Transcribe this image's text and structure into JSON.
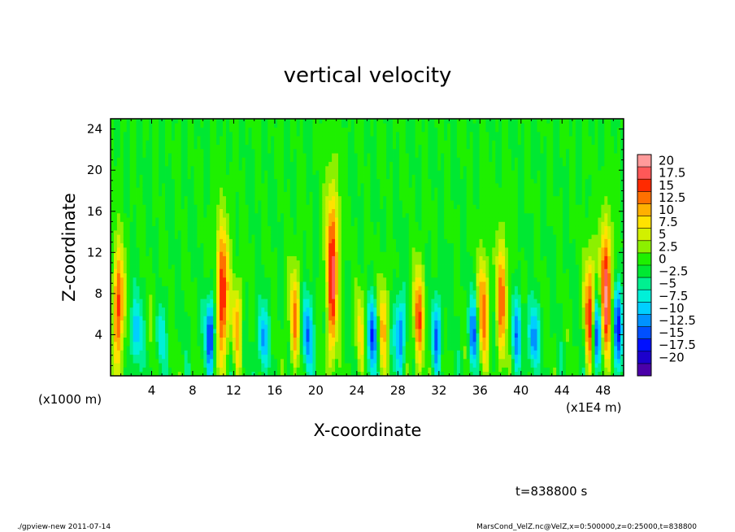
{
  "chart_data": {
    "type": "heatmap",
    "title": "vertical velocity",
    "xlabel": "X-coordinate",
    "ylabel": "Z-coordinate",
    "x_scale_note": "(x1E4 m)",
    "y_scale_note": "(x1000 m)",
    "x_range": [
      0,
      50
    ],
    "y_range": [
      0,
      25
    ],
    "x_ticks": [
      "4",
      "8",
      "12",
      "16",
      "20",
      "24",
      "28",
      "32",
      "36",
      "40",
      "44",
      "48"
    ],
    "y_ticks": [
      "4",
      "8",
      "12",
      "16",
      "20",
      "24"
    ],
    "colorbar": {
      "labels": [
        "20",
        "17.5",
        "15",
        "12.5",
        "10",
        "7.5",
        "5",
        "2.5",
        "0",
        "−2.5",
        "−5",
        "−7.5",
        "−10",
        "−12.5",
        "−15",
        "−17.5",
        "−20"
      ],
      "range": [
        -20,
        20
      ],
      "colors": [
        "#4a00a8",
        "#1c00cc",
        "#0010ff",
        "#0050ff",
        "#0092ff",
        "#00cfff",
        "#00f0d8",
        "#00f090",
        "#00e832",
        "#1ef000",
        "#8cf000",
        "#d2f000",
        "#ffe200",
        "#ffb000",
        "#ff7000",
        "#ff2a00",
        "#ff5858",
        "#ff9a9a"
      ]
    },
    "updrafts": [
      {
        "x": 0.8,
        "peak": 15,
        "top": 13
      },
      {
        "x": 4.5,
        "peak": 8,
        "top": 9
      },
      {
        "x": 10.9,
        "peak": 17,
        "top": 15
      },
      {
        "x": 12.3,
        "peak": 9,
        "top": 10
      },
      {
        "x": 17.9,
        "peak": 11,
        "top": 11
      },
      {
        "x": 21.6,
        "peak": 16,
        "top": 19
      },
      {
        "x": 24.3,
        "peak": 7,
        "top": 9
      },
      {
        "x": 26.5,
        "peak": 10,
        "top": 10
      },
      {
        "x": 30.0,
        "peak": 13,
        "top": 11
      },
      {
        "x": 36.3,
        "peak": 13,
        "top": 12
      },
      {
        "x": 38.1,
        "peak": 12,
        "top": 14
      },
      {
        "x": 46.7,
        "peak": 15,
        "top": 12
      },
      {
        "x": 48.3,
        "peak": 18,
        "top": 15
      }
    ],
    "downdrafts": [
      {
        "x": 2.5,
        "peak": -9,
        "top": 8
      },
      {
        "x": 4.7,
        "peak": -12,
        "top": 8
      },
      {
        "x": 9.7,
        "peak": -13,
        "top": 8
      },
      {
        "x": 14.8,
        "peak": -10,
        "top": 7
      },
      {
        "x": 19.2,
        "peak": -11,
        "top": 8
      },
      {
        "x": 25.6,
        "peak": -13,
        "top": 8
      },
      {
        "x": 28.2,
        "peak": -12,
        "top": 8
      },
      {
        "x": 31.8,
        "peak": -10,
        "top": 8
      },
      {
        "x": 35.4,
        "peak": -11,
        "top": 8
      },
      {
        "x": 39.6,
        "peak": -9,
        "top": 8
      },
      {
        "x": 41.2,
        "peak": -11,
        "top": 7
      },
      {
        "x": 47.4,
        "peak": -13,
        "top": 8
      },
      {
        "x": 49.4,
        "peak": -13,
        "top": 9
      }
    ]
  },
  "time_label": "t=838800 s",
  "footer_left": "./gpview-new  2011-07-14",
  "footer_right": "MarsCond_VelZ.nc@VelZ,x=0:500000,z=0:25000,t=838800"
}
